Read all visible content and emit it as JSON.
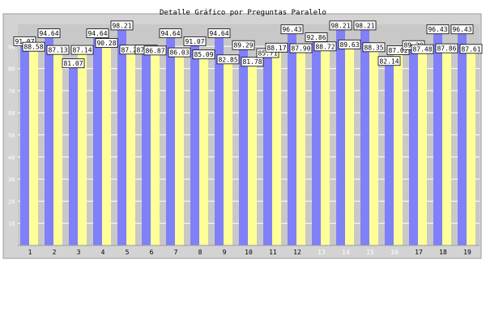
{
  "chart_data": {
    "type": "bar",
    "title": "Detalle Gráfico por Preguntas Paralelo",
    "categories": [
      "1",
      "2",
      "3",
      "4",
      "5",
      "6",
      "7",
      "8",
      "9",
      "10",
      "11",
      "12",
      "13",
      "14",
      "15",
      "16",
      "17",
      "18",
      "19"
    ],
    "series": [
      {
        "color": "#8080f8",
        "values": [
          91.07,
          94.64,
          81.07,
          94.64,
          98.21,
          87.27,
          94.64,
          91.07,
          94.64,
          89.29,
          85.71,
          96.43,
          92.86,
          98.21,
          98.21,
          82.14,
          89.29,
          96.43,
          96.43
        ]
      },
      {
        "color": "#ffff98",
        "values": [
          88.58,
          87.13,
          87.14,
          90.28,
          87.27,
          86.87,
          86.03,
          85.09,
          82.85,
          81.78,
          88.17,
          87.9,
          88.72,
          89.63,
          88.35,
          87.02,
          87.48,
          87.86,
          87.61
        ]
      }
    ],
    "ylim": [
      0,
      100
    ],
    "yticks": [
      10,
      20,
      30,
      40,
      50,
      60,
      70,
      80,
      90
    ],
    "grid": true,
    "xlabel": "",
    "ylabel": "",
    "colors": {
      "background": "#d3d3d3",
      "plot_area": "#c8c8c8",
      "frame": "#9e9e9e",
      "grid": "#ffffff",
      "tick_label_light": "#ffffff",
      "tick_label_dark": "#000000"
    }
  }
}
